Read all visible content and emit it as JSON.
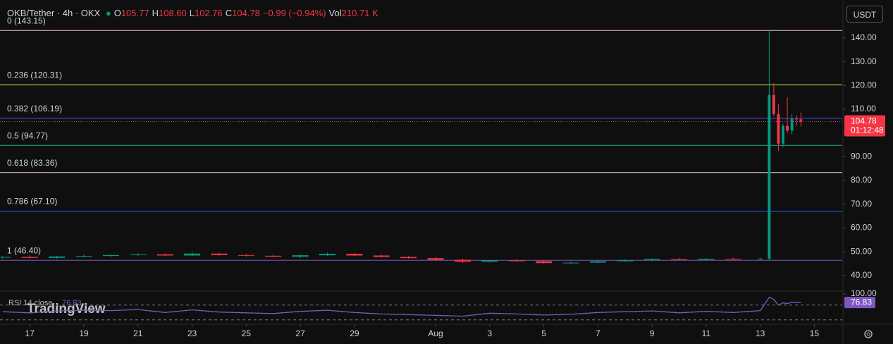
{
  "header": {
    "title": "OKB/Tether · 4h · OKX",
    "ohlc": [
      {
        "key": "O",
        "value": "105.77"
      },
      {
        "key": "H",
        "value": "108.60"
      },
      {
        "key": "L",
        "value": "102.76"
      },
      {
        "key": "C",
        "value": "104.78"
      }
    ],
    "change": "−0.99 (−0.94%)",
    "vol_key": "Vol",
    "vol_value": "210.71 K",
    "currency": "USDT"
  },
  "chart_data": {
    "type": "candlestick",
    "up_color": "#089981",
    "down_color": "#f23645",
    "x": [
      16,
      17,
      18,
      19,
      20,
      21,
      22,
      23,
      24,
      25,
      26,
      27,
      28,
      29,
      30,
      31,
      32,
      33,
      34,
      35,
      36,
      37,
      38,
      39,
      40,
      41,
      42,
      43,
      44,
      44.33,
      44.5,
      44.67,
      44.84,
      45,
      45.17,
      45.34,
      45.5
    ],
    "open": [
      47.5,
      47.8,
      47.4,
      48,
      48.2,
      48.6,
      48.9,
      48.4,
      49.2,
      48.6,
      48.3,
      47.9,
      48.5,
      49.1,
      48.4,
      47.8,
      47.3,
      46.6,
      45.8,
      46.3,
      46,
      45.2,
      45.4,
      46,
      46.4,
      46.9,
      46.6,
      47,
      46.8,
      47.1,
      116,
      108,
      95.5,
      103,
      101,
      106,
      105.77
    ],
    "high": [
      48.2,
      48.5,
      48.3,
      48.8,
      48.9,
      49.5,
      49.3,
      50,
      49.6,
      49.2,
      48.9,
      48.8,
      49.6,
      49.4,
      48.8,
      48.2,
      47.8,
      47.1,
      46.6,
      46.9,
      46.4,
      45.9,
      46.3,
      46.8,
      47.2,
      47.4,
      47.3,
      47.5,
      47.4,
      143.15,
      121,
      112,
      104,
      115,
      108,
      107.5,
      108.6
    ],
    "low": [
      47,
      47.2,
      47,
      47.6,
      47.8,
      48,
      48.2,
      48,
      48.3,
      47.8,
      47.6,
      47.3,
      48.1,
      48.2,
      47.5,
      47,
      46.2,
      45.3,
      45.4,
      45.6,
      44.8,
      44.6,
      45.1,
      45.7,
      46,
      46.3,
      46.2,
      46.4,
      46.4,
      46.4,
      107,
      92.5,
      94,
      100,
      99.5,
      103,
      102.76
    ],
    "close": [
      47.8,
      47.4,
      48,
      48.2,
      48.6,
      48.9,
      48.4,
      49.2,
      48.6,
      48.3,
      47.9,
      48.5,
      49.1,
      48.4,
      47.8,
      47.3,
      46.6,
      45.8,
      46.3,
      46,
      45.2,
      45.4,
      46,
      46.4,
      46.9,
      46.6,
      47,
      46.8,
      47.1,
      116,
      108,
      95.5,
      103,
      101,
      106,
      105.77,
      104.78
    ],
    "xlim": [
      15.9,
      47.03
    ],
    "xticks": [
      17,
      19,
      21,
      23,
      25,
      27,
      29,
      {
        "value": 32,
        "label": "Aug"
      },
      {
        "value": 34,
        "label": "3"
      },
      {
        "value": 36,
        "label": "5"
      },
      {
        "value": 38,
        "label": "7"
      },
      {
        "value": 40,
        "label": "9"
      },
      {
        "value": 42,
        "label": "11"
      },
      {
        "value": 44,
        "label": "13"
      },
      {
        "value": 46,
        "label": "15"
      }
    ],
    "ylim": [
      33.4,
      156
    ],
    "yticks": [
      {
        "value": 40,
        "label": "40.00"
      },
      {
        "value": 50,
        "label": "50.00"
      },
      {
        "value": 60,
        "label": "60.00"
      },
      {
        "value": 70,
        "label": "70.00"
      },
      {
        "value": 80,
        "label": "80.00"
      },
      {
        "value": 90,
        "label": "90.00"
      },
      {
        "value": 100,
        "label": "100.00"
      },
      {
        "value": 110,
        "label": "110.00"
      },
      {
        "value": 120,
        "label": "120.00"
      },
      {
        "value": 130,
        "label": "130.00"
      },
      {
        "value": 140,
        "label": "140.00"
      }
    ],
    "levels": [
      {
        "label": "0 (143.15)",
        "value": 143.15,
        "color": "#f0c4c4"
      },
      {
        "label": "0.236 (120.31)",
        "value": 120.31,
        "color": "#e8e84a"
      },
      {
        "label": "0.382 (106.19)",
        "value": 106.19,
        "color": "#2962ff"
      },
      {
        "label": "0.5 (94.77)",
        "value": 94.77,
        "color": "#22ab94"
      },
      {
        "label": "0.618 (83.36)",
        "value": 83.36,
        "color": "#f7d7d7"
      },
      {
        "label": "0.786 (67.10)",
        "value": 67.1,
        "color": "#2962ff"
      },
      {
        "label": "1 (46.40)",
        "value": 46.4,
        "color": "#7e57c2"
      }
    ],
    "last_price": 104.78,
    "countdown": "01:12:48",
    "rsi": {
      "label": "RSI 14 close",
      "color": "#7e57c2",
      "ylim": [
        20,
        100
      ],
      "yticks": [
        {
          "value": 100,
          "label": "100.00"
        }
      ],
      "bands": [
        70,
        30
      ],
      "values": [
        52,
        49,
        54,
        56,
        55,
        58,
        50,
        57,
        51,
        49,
        47,
        53,
        56,
        50,
        46,
        44,
        42,
        40,
        48,
        46,
        43,
        45,
        50,
        52,
        54,
        49,
        53,
        50,
        55,
        91,
        85,
        70,
        76,
        74,
        78,
        77,
        76.83
      ]
    },
    "watermark": "TradingView"
  }
}
